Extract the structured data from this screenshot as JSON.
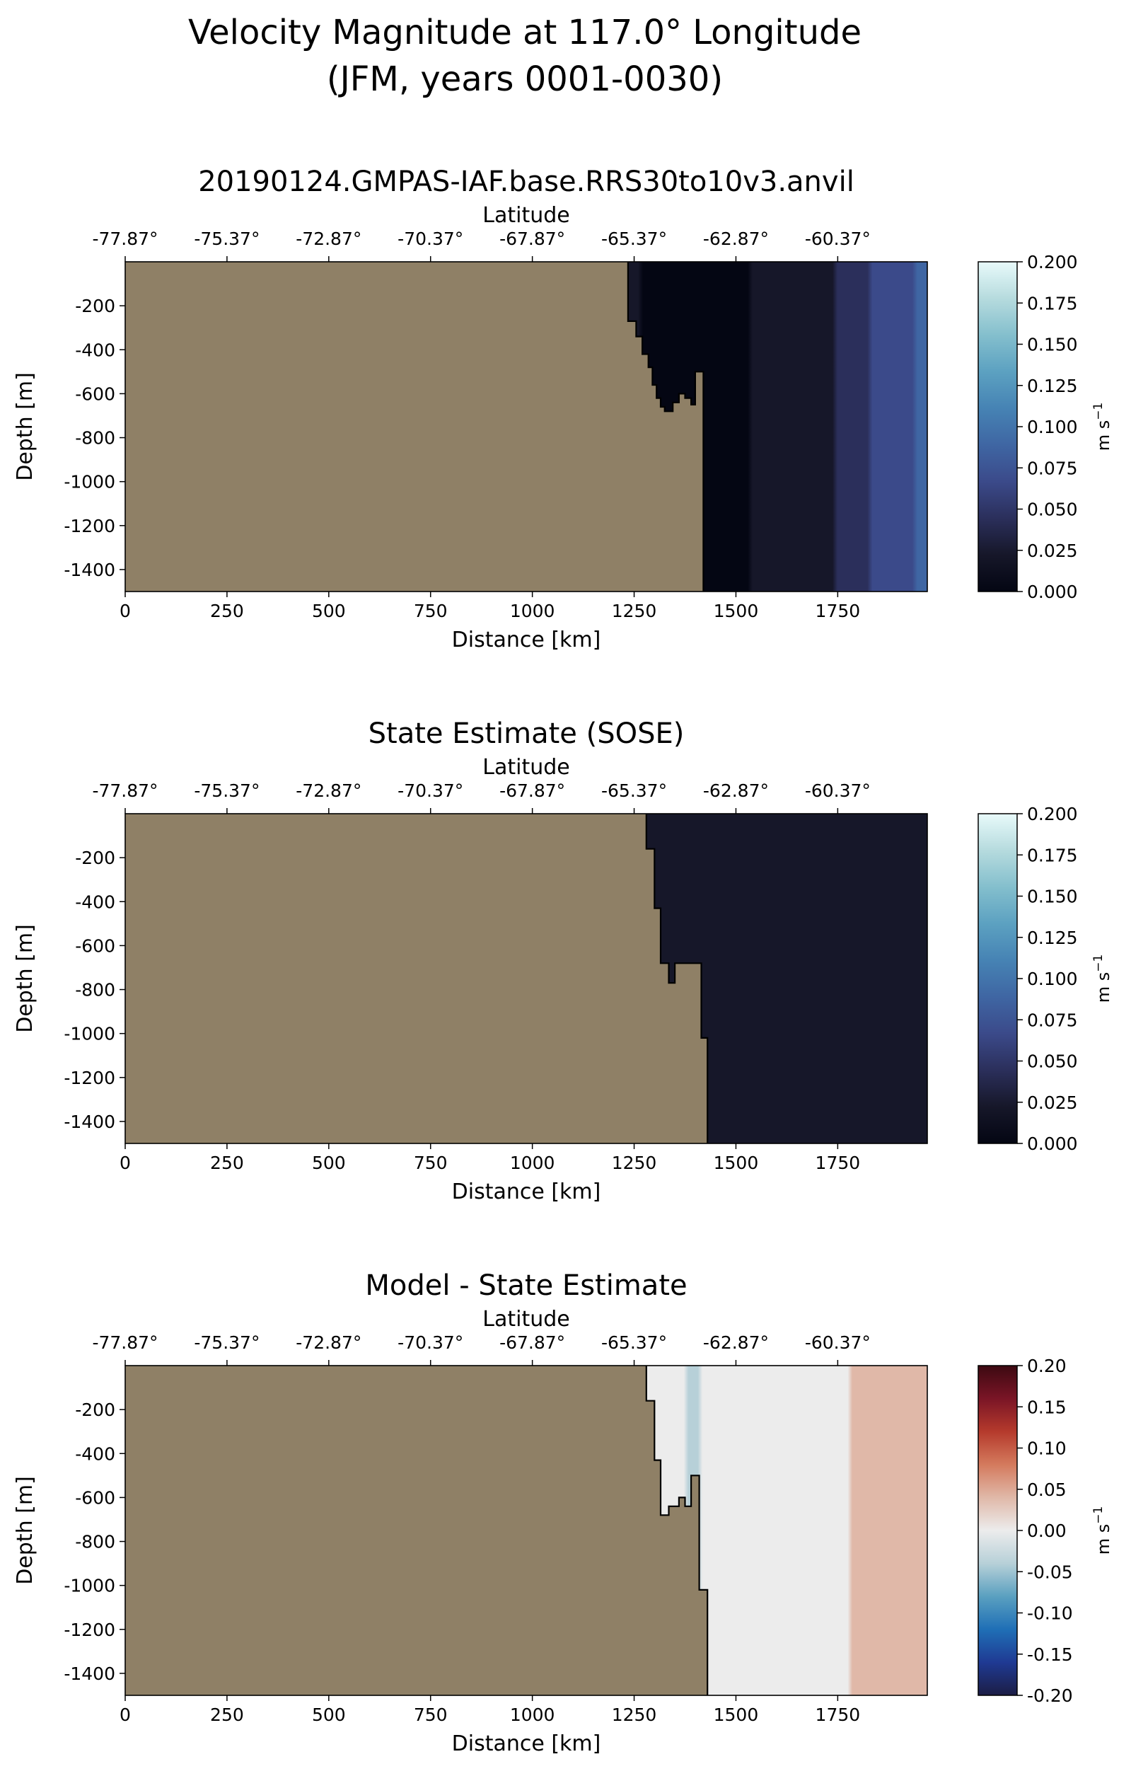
{
  "figure": {
    "suptitle_line1": "Velocity Magnitude at 117.0° Longitude",
    "suptitle_line2": "(JFM, years 0001-0030)"
  },
  "colors": {
    "land": "#8f8066",
    "outline": "#000000",
    "speed_colormap": [
      "#040613",
      "#161729",
      "#2b2f5b",
      "#3b4a8a",
      "#3f66a3",
      "#4683b4",
      "#5ca1c1",
      "#84bfcd",
      "#b6dbde",
      "#e8fafa"
    ],
    "diff_colormap": [
      "#1c1d45",
      "#1f3a93",
      "#1f6fb6",
      "#5aa0c0",
      "#b7d0d8",
      "#ececec",
      "#e0b8a8",
      "#d47a5d",
      "#b53a2c",
      "#7a1526",
      "#3c0911"
    ]
  },
  "chart_data": [
    {
      "type": "heatmap",
      "title": "20190124.GMPAS-IAF.base.RRS30to10v3.anvil",
      "xlabel": "Distance [km]",
      "ylabel": "Depth [m]",
      "top_xlabel": "Latitude",
      "xlim": [
        0,
        1970
      ],
      "ylim": [
        -1500,
        0
      ],
      "xticks": [
        "0",
        "250",
        "500",
        "750",
        "1000",
        "1250",
        "1500",
        "1750"
      ],
      "yticks": [
        "-200",
        "-400",
        "-600",
        "-800",
        "-1000",
        "-1200",
        "-1400"
      ],
      "lat_ticks": [
        "-77.87°",
        "-75.37°",
        "-72.87°",
        "-70.37°",
        "-67.87°",
        "-65.37°",
        "-62.87°",
        "-60.37°"
      ],
      "colorbar": {
        "label": "m s",
        "sup": "−1",
        "vmin": 0,
        "vmax": 0.2,
        "ticks": [
          "0.000",
          "0.025",
          "0.050",
          "0.075",
          "0.100",
          "0.125",
          "0.150",
          "0.175",
          "0.200"
        ],
        "colormap": "speed"
      },
      "bathymetry": [
        [
          1235,
          0
        ],
        [
          1235,
          -270
        ],
        [
          1255,
          -270
        ],
        [
          1255,
          -340
        ],
        [
          1270,
          -340
        ],
        [
          1270,
          -420
        ],
        [
          1285,
          -420
        ],
        [
          1285,
          -480
        ],
        [
          1295,
          -480
        ],
        [
          1295,
          -560
        ],
        [
          1305,
          -560
        ],
        [
          1305,
          -620
        ],
        [
          1315,
          -620
        ],
        [
          1315,
          -660
        ],
        [
          1325,
          -660
        ],
        [
          1325,
          -680
        ],
        [
          1345,
          -680
        ],
        [
          1345,
          -640
        ],
        [
          1360,
          -640
        ],
        [
          1360,
          -600
        ],
        [
          1375,
          -600
        ],
        [
          1375,
          -620
        ],
        [
          1390,
          -620
        ],
        [
          1390,
          -650
        ],
        [
          1400,
          -650
        ],
        [
          1400,
          -500
        ],
        [
          1420,
          -500
        ],
        [
          1420,
          -1500
        ]
      ],
      "speed_profile": {
        "x": [
          1235,
          1300,
          1400,
          1500,
          1560,
          1600,
          1640,
          1660,
          1700,
          1750,
          1800,
          1850,
          1900,
          1970
        ],
        "values": [
          0.012,
          0.01,
          0.006,
          0.008,
          0.014,
          0.018,
          0.016,
          0.03,
          0.024,
          0.036,
          0.045,
          0.06,
          0.075,
          0.08
        ]
      }
    },
    {
      "type": "heatmap",
      "title": "State Estimate (SOSE)",
      "xlabel": "Distance [km]",
      "ylabel": "Depth [m]",
      "top_xlabel": "Latitude",
      "xlim": [
        0,
        1970
      ],
      "ylim": [
        -1500,
        0
      ],
      "xticks": [
        "0",
        "250",
        "500",
        "750",
        "1000",
        "1250",
        "1500",
        "1750"
      ],
      "yticks": [
        "-200",
        "-400",
        "-600",
        "-800",
        "-1000",
        "-1200",
        "-1400"
      ],
      "lat_ticks": [
        "-77.87°",
        "-75.37°",
        "-72.87°",
        "-70.37°",
        "-67.87°",
        "-65.37°",
        "-62.87°",
        "-60.37°"
      ],
      "colorbar": {
        "label": "m s",
        "sup": "−1",
        "vmin": 0,
        "vmax": 0.2,
        "ticks": [
          "0.000",
          "0.025",
          "0.050",
          "0.075",
          "0.100",
          "0.125",
          "0.150",
          "0.175",
          "0.200"
        ],
        "colormap": "speed"
      },
      "bathymetry": [
        [
          1280,
          0
        ],
        [
          1280,
          -160
        ],
        [
          1300,
          -160
        ],
        [
          1300,
          -430
        ],
        [
          1315,
          -430
        ],
        [
          1315,
          -680
        ],
        [
          1335,
          -680
        ],
        [
          1335,
          -770
        ],
        [
          1350,
          -770
        ],
        [
          1350,
          -680
        ],
        [
          1415,
          -680
        ],
        [
          1415,
          -1020
        ],
        [
          1430,
          -1020
        ],
        [
          1430,
          -1500
        ]
      ],
      "speed_profile": {
        "x": [
          1280,
          1330,
          1400,
          1450,
          1500,
          1560,
          1600,
          1660,
          1700,
          1750,
          1800,
          1850,
          1900,
          1970
        ],
        "values": [
          0.02,
          0.018,
          0.03,
          0.02,
          0.014,
          0.02,
          0.025,
          0.032,
          0.026,
          0.03,
          0.028,
          0.022,
          0.018,
          0.015
        ]
      }
    },
    {
      "type": "heatmap",
      "title": "Model - State Estimate",
      "xlabel": "Distance [km]",
      "ylabel": "Depth [m]",
      "top_xlabel": "Latitude",
      "xlim": [
        0,
        1970
      ],
      "ylim": [
        -1500,
        0
      ],
      "xticks": [
        "0",
        "250",
        "500",
        "750",
        "1000",
        "1250",
        "1500",
        "1750"
      ],
      "yticks": [
        "-200",
        "-400",
        "-600",
        "-800",
        "-1000",
        "-1200",
        "-1400"
      ],
      "lat_ticks": [
        "-77.87°",
        "-75.37°",
        "-72.87°",
        "-70.37°",
        "-67.87°",
        "-65.37°",
        "-62.87°",
        "-60.37°"
      ],
      "colorbar": {
        "label": "m s",
        "sup": "−1",
        "vmin": -0.2,
        "vmax": 0.2,
        "ticks": [
          "-0.20",
          "-0.15",
          "-0.10",
          "-0.05",
          "0.00",
          "0.05",
          "0.10",
          "0.15",
          "0.20"
        ],
        "colormap": "diff"
      },
      "bathymetry": [
        [
          1280,
          0
        ],
        [
          1280,
          -160
        ],
        [
          1300,
          -160
        ],
        [
          1300,
          -430
        ],
        [
          1315,
          -430
        ],
        [
          1315,
          -680
        ],
        [
          1335,
          -680
        ],
        [
          1335,
          -640
        ],
        [
          1360,
          -640
        ],
        [
          1360,
          -600
        ],
        [
          1375,
          -600
        ],
        [
          1375,
          -640
        ],
        [
          1390,
          -640
        ],
        [
          1390,
          -500
        ],
        [
          1410,
          -500
        ],
        [
          1410,
          -1020
        ],
        [
          1430,
          -1020
        ],
        [
          1430,
          -1500
        ]
      ],
      "speed_profile": {
        "x": [
          1280,
          1350,
          1400,
          1450,
          1500,
          1560,
          1600,
          1640,
          1660,
          1700,
          1750,
          1800,
          1850,
          1900,
          1970
        ],
        "values": [
          -0.005,
          -0.012,
          -0.025,
          -0.005,
          0.004,
          0.015,
          0.02,
          0.01,
          -0.01,
          0.01,
          0.015,
          0.025,
          0.04,
          0.055,
          0.05
        ]
      }
    }
  ]
}
